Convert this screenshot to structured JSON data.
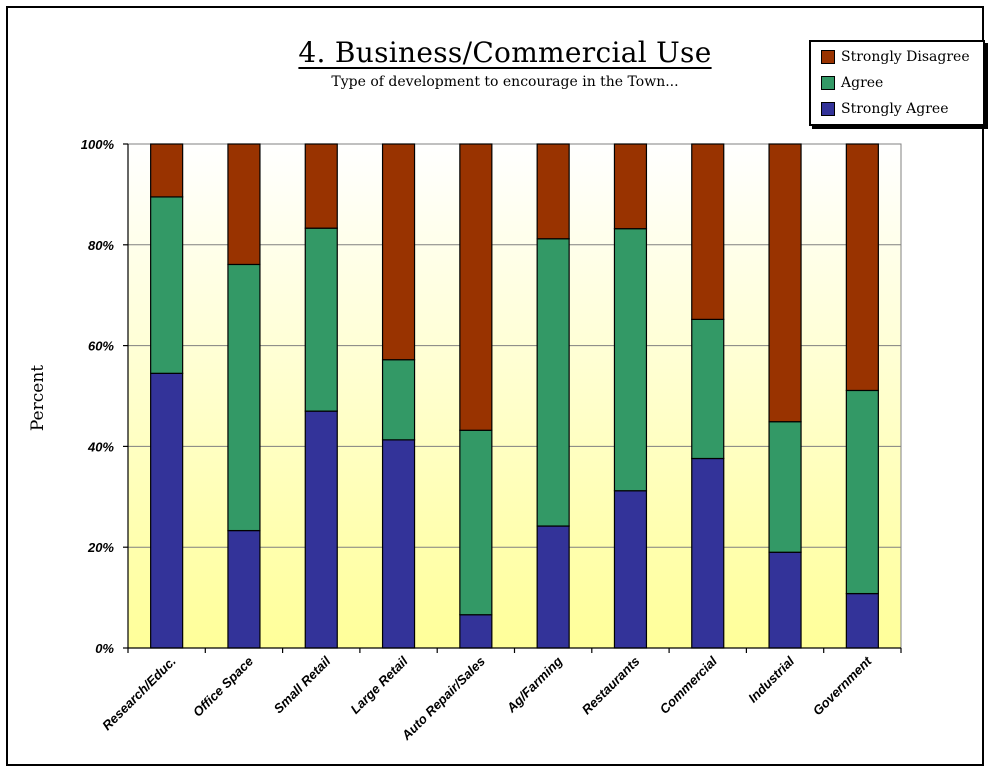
{
  "chart_data": {
    "type": "bar",
    "stacked": true,
    "title": "4. Business/Commercial Use",
    "subtitle": "Type of development to encourage in the Town...",
    "xlabel": "",
    "ylabel": "Percent",
    "ylim": [
      0,
      100
    ],
    "yticks": [
      "0%",
      "20%",
      "40%",
      "60%",
      "80%",
      "100%"
    ],
    "grid": true,
    "legend_position": "top-right",
    "categories": [
      "Research/Educ.",
      "Office Space",
      "Small Retail",
      "Large Retail",
      "Auto Repair/Sales",
      "Ag/Farming",
      "Restaurants",
      "Commercial",
      "Industrial",
      "Government"
    ],
    "series": [
      {
        "name": "Strongly Agree",
        "color": "#333399",
        "values": [
          54.5,
          23.3,
          47.0,
          41.3,
          6.6,
          24.2,
          31.2,
          37.6,
          19.0,
          10.8
        ]
      },
      {
        "name": "Agree",
        "color": "#339966",
        "values": [
          35.0,
          52.8,
          36.3,
          15.9,
          36.6,
          57.0,
          52.0,
          27.6,
          25.9,
          40.3
        ]
      },
      {
        "name": "Strongly Disagree",
        "color": "#993300",
        "values": [
          10.5,
          23.9,
          16.7,
          42.8,
          56.8,
          18.8,
          16.8,
          34.8,
          55.1,
          48.9
        ]
      }
    ],
    "legend_order": [
      "Strongly Disagree",
      "Agree",
      "Strongly Agree"
    ]
  }
}
